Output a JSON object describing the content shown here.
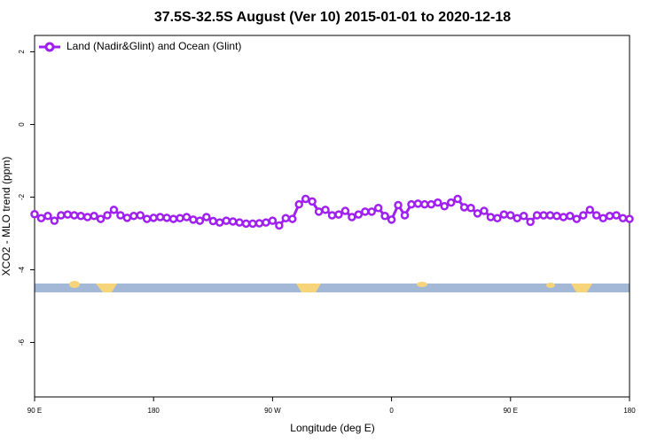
{
  "chart_data": {
    "type": "line",
    "title": "37.5S-32.5S August (Ver 10)   2015-01-01 to 2020-12-18",
    "x_label": "Longitude (deg E)",
    "y_label": "XCO2 - MLO trend (ppm)",
    "x": [
      90,
      95,
      100,
      105,
      110,
      115,
      120,
      125,
      130,
      135,
      140,
      145,
      150,
      155,
      160,
      165,
      170,
      175,
      180,
      185,
      190,
      195,
      200,
      205,
      210,
      215,
      220,
      225,
      230,
      235,
      240,
      245,
      250,
      255,
      260,
      265,
      270,
      275,
      280,
      285,
      290,
      295,
      300,
      305,
      310,
      315,
      320,
      325,
      330,
      335,
      340,
      345,
      350,
      355,
      360,
      365,
      370,
      375,
      380,
      385,
      390,
      395,
      400,
      405,
      410,
      415,
      420,
      425,
      430,
      435,
      440,
      445,
      450,
      455,
      460,
      465,
      470,
      475,
      480,
      485,
      490,
      495,
      500,
      505,
      510,
      515,
      520,
      525,
      530,
      535,
      540
    ],
    "series": [
      {
        "name": "Land (Nadir&Glint) and Ocean (Glint)",
        "color": "#a020f0",
        "values": [
          -2.47,
          -2.58,
          -2.52,
          -2.65,
          -2.5,
          -2.48,
          -2.5,
          -2.52,
          -2.55,
          -2.52,
          -2.6,
          -2.5,
          -2.35,
          -2.5,
          -2.57,
          -2.52,
          -2.5,
          -2.6,
          -2.57,
          -2.55,
          -2.57,
          -2.6,
          -2.58,
          -2.55,
          -2.62,
          -2.65,
          -2.55,
          -2.66,
          -2.7,
          -2.65,
          -2.67,
          -2.7,
          -2.73,
          -2.73,
          -2.72,
          -2.7,
          -2.65,
          -2.78,
          -2.58,
          -2.6,
          -2.2,
          -2.05,
          -2.12,
          -2.4,
          -2.35,
          -2.5,
          -2.48,
          -2.38,
          -2.55,
          -2.48,
          -2.4,
          -2.4,
          -2.3,
          -2.52,
          -2.62,
          -2.22,
          -2.5,
          -2.2,
          -2.18,
          -2.2,
          -2.2,
          -2.15,
          -2.25,
          -2.15,
          -2.05,
          -2.28,
          -2.3,
          -2.45,
          -2.38,
          -2.55,
          -2.58,
          -2.48,
          -2.5,
          -2.58,
          -2.52,
          -2.68,
          -2.5,
          -2.5,
          -2.5,
          -2.52,
          -2.55,
          -2.52,
          -2.6,
          -2.5,
          -2.35,
          -2.5,
          -2.58,
          -2.52,
          -2.5,
          -2.58,
          -2.6
        ]
      }
    ],
    "xlim": [
      90,
      540
    ],
    "xticks": [
      {
        "value": 90,
        "label": "90 E"
      },
      180,
      {
        "value": 270,
        "label": "90 W"
      },
      {
        "value": 360,
        "label": "0"
      },
      {
        "value": 450,
        "label": "90 E"
      },
      {
        "value": 540,
        "label": "180"
      }
    ],
    "ylim": [
      -7.5,
      2.45
    ],
    "yticks": [
      -6,
      -4,
      -2,
      0,
      2
    ],
    "legend": "top-left"
  }
}
